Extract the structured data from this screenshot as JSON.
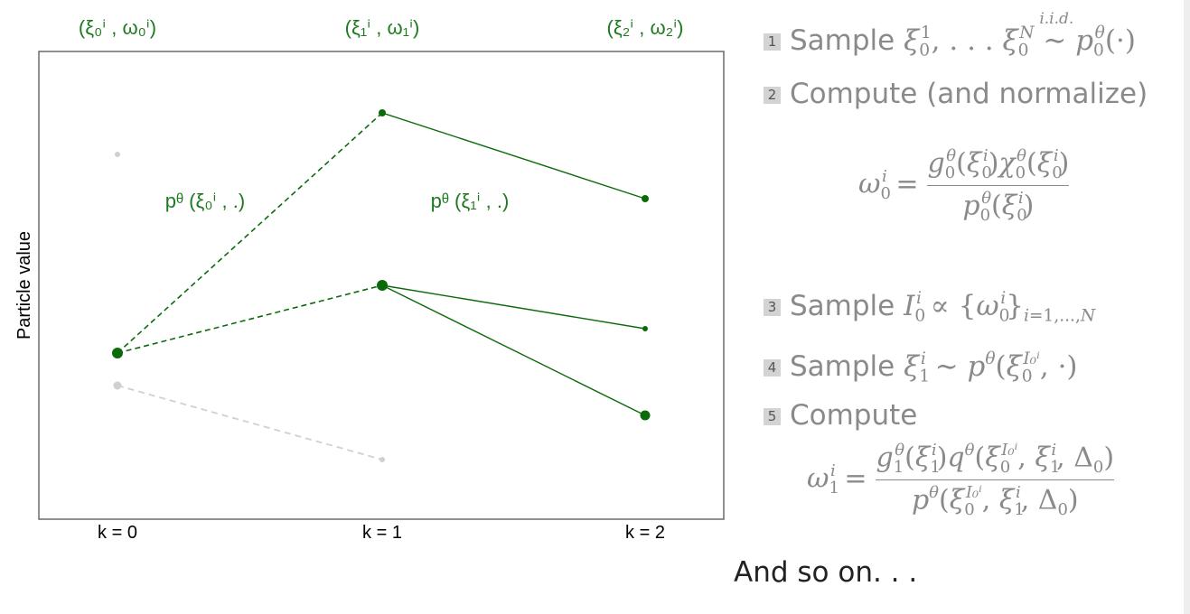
{
  "diagram": {
    "y_axis_label": "Particle value",
    "x_ticks": [
      {
        "id": "k0",
        "label": "k = 0"
      },
      {
        "id": "k1",
        "label": "k = 1"
      },
      {
        "id": "k2",
        "label": "k = 2"
      }
    ],
    "column_headers": [
      {
        "id": "h0",
        "label": "(ξ₀ⁱ , ω₀ⁱ)"
      },
      {
        "id": "h1",
        "label": "(ξ₁ⁱ , ω₁ⁱ)"
      },
      {
        "id": "h2",
        "label": "(ξ₂ⁱ , ω₂ⁱ)"
      }
    ],
    "transition_labels": [
      {
        "id": "t0",
        "label": "pᶿ (ξ₀ⁱ , .)"
      },
      {
        "id": "t1",
        "label": "pᶿ (ξ₁ⁱ , .)"
      }
    ],
    "colors": {
      "active": "#0b6b0b",
      "inactive": "#d0d0d0",
      "frame": "#555555"
    }
  },
  "steps": [
    {
      "num": "1",
      "verb": "Sample"
    },
    {
      "num": "2",
      "verb": "Compute (and normalize)"
    },
    {
      "num": "3",
      "verb": "Sample"
    },
    {
      "num": "4",
      "verb": "Sample"
    },
    {
      "num": "5",
      "verb": "Compute"
    }
  ],
  "closing": "And so on. . ."
}
